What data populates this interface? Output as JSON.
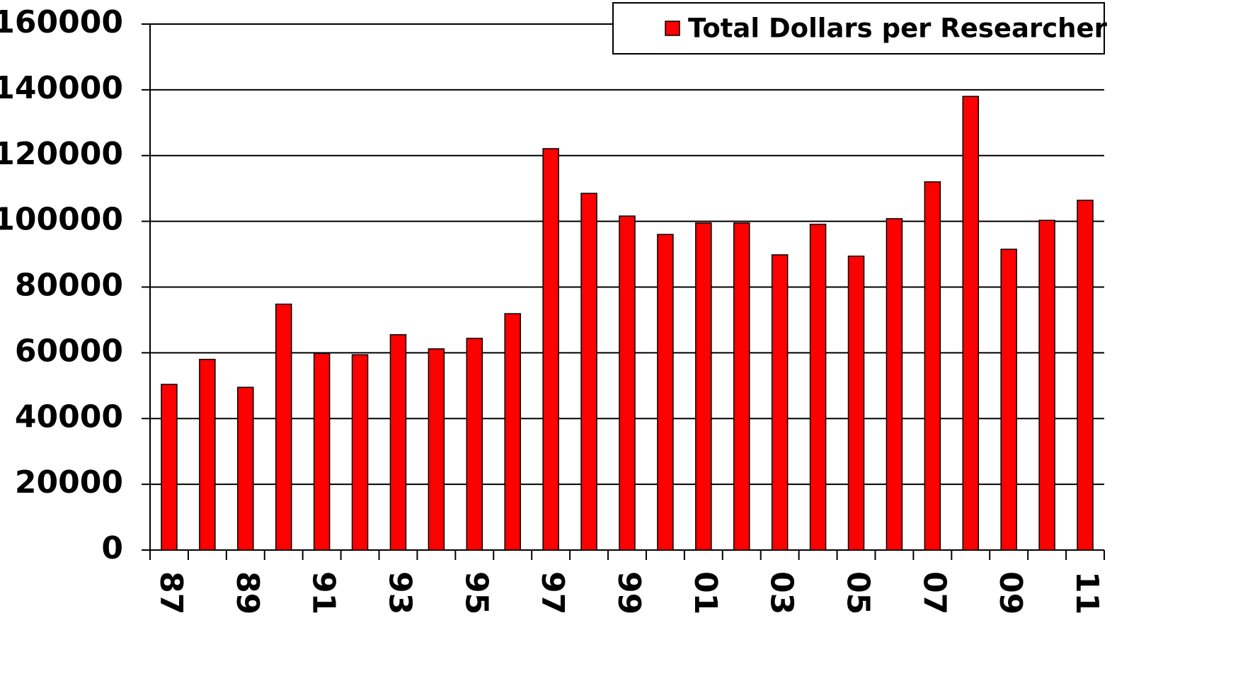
{
  "chart_data": {
    "type": "bar",
    "categories": [
      "87",
      null,
      "89",
      null,
      "91",
      null,
      "93",
      null,
      "95",
      null,
      "97",
      null,
      "99",
      null,
      "01",
      null,
      "03",
      null,
      "05",
      null,
      "07",
      null,
      "09",
      null,
      "11"
    ],
    "series": [
      {
        "name": "Total Dollars per Researcher",
        "color": "#ff0000",
        "values": [
          50400,
          58000,
          49500,
          74800,
          59800,
          59400,
          65500,
          61200,
          64400,
          71900,
          122100,
          108500,
          101600,
          96000,
          99500,
          99500,
          89800,
          99100,
          89400,
          100800,
          112000,
          138000,
          91500,
          100300,
          106400
        ]
      }
    ],
    "ylim": [
      0,
      160000
    ],
    "yticks": [
      0,
      20000,
      40000,
      60000,
      80000,
      100000,
      120000,
      140000,
      160000
    ],
    "grid": true,
    "legend": "top-right"
  }
}
